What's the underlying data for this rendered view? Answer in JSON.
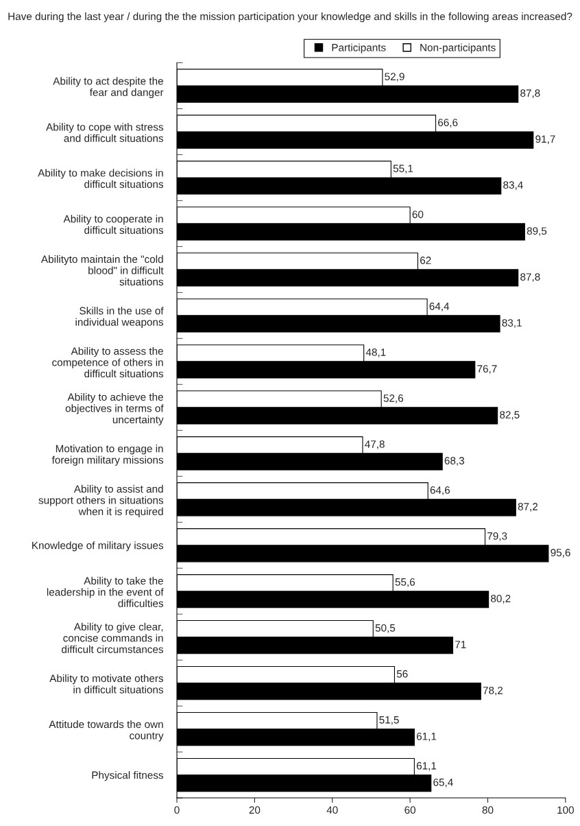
{
  "chart_data": {
    "type": "bar",
    "orientation": "horizontal",
    "title": "Have during the last year / during the the mission participation your knowledge and skills in the following areas increased?",
    "categories": [
      "Ability to act despite the fear and danger",
      "Ability to cope with stress and difficult situations",
      "Ability to make decisions in difficult situations",
      "Ability to cooperate in difficult situations",
      "Abilityto maintain the \"cold blood\" in difficult situations",
      "Skills in the use of individual weapons",
      "Ability to assess the competence of others in difficult situations",
      "Ability to achieve the objectives in terms of uncertainty",
      "Motivation to engage in foreign military missions",
      "Ability to assist and support others in situations when it is required",
      "Knowledge of military issues",
      "Ability to take the leadership in the event of difficulties",
      "Ability to give clear, concise commands in difficult circumstances",
      "Ability to motivate others in difficult situations",
      "Attitude towards the own country",
      "Physical fitness"
    ],
    "series": [
      {
        "name": "Participants",
        "color": "#000000",
        "values": [
          87.8,
          91.7,
          83.4,
          89.5,
          87.8,
          83.1,
          76.7,
          82.5,
          68.3,
          87.2,
          95.6,
          80.2,
          71,
          78.2,
          61.1,
          65.4
        ],
        "value_labels": [
          "87,8",
          "91,7",
          "83,4",
          "89,5",
          "87,8",
          "83,1",
          "76,7",
          "82,5",
          "68,3",
          "87,2",
          "95,6",
          "80,2",
          "71",
          "78,2",
          "61,1",
          "65,4"
        ]
      },
      {
        "name": "Non-participants",
        "color": "#ffffff",
        "values": [
          52.9,
          66.6,
          55.1,
          60,
          62,
          64.4,
          48.1,
          52.6,
          47.8,
          64.6,
          79.3,
          55.6,
          50.5,
          56,
          51.5,
          61.1
        ],
        "value_labels": [
          "52,9",
          "66,6",
          "55,1",
          "60",
          "62",
          "64,4",
          "48,1",
          "52,6",
          "47,8",
          "64,6",
          "79,3",
          "55,6",
          "50,5",
          "56",
          "51,5",
          "61,1"
        ]
      }
    ],
    "xlim": [
      0,
      100
    ],
    "xticks": [
      0,
      20,
      40,
      60,
      80,
      100
    ],
    "grid": false,
    "legend": "top right"
  }
}
